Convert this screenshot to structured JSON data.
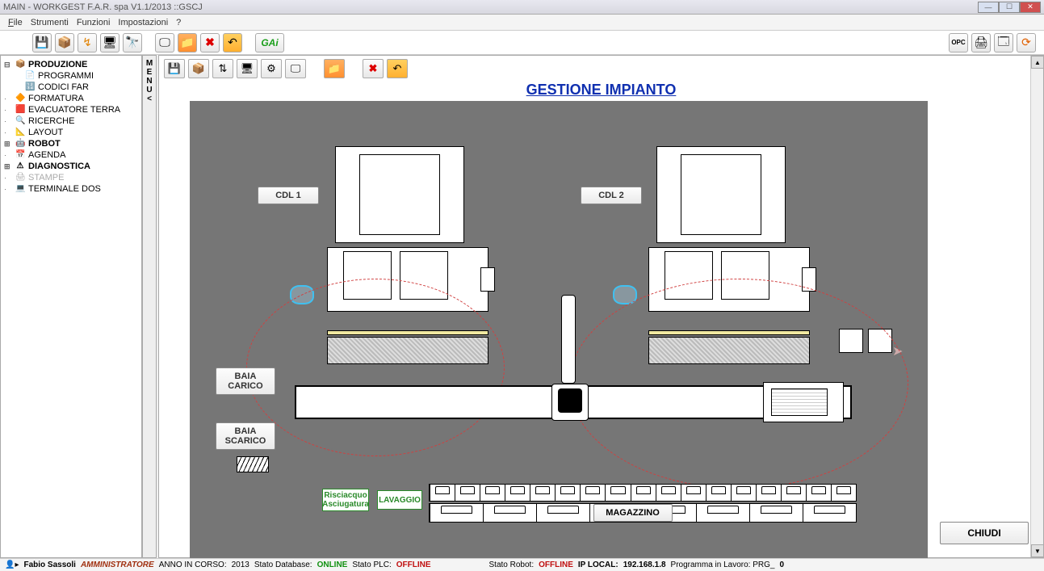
{
  "window": {
    "title": "MAIN - WORKGEST  F.A.R. spa  V1.1/2013        ::GSCJ"
  },
  "menubar": {
    "file": "File",
    "strumenti": "Strumenti",
    "funzioni": "Funzioni",
    "impostazioni": "Impostazioni",
    "help": "?"
  },
  "menu_tab": "MENU <",
  "sidebar": {
    "items": [
      {
        "label": "PRODUZIONE",
        "bold": true,
        "icon": "📦",
        "exp": "⊟"
      },
      {
        "label": "PROGRAMMI",
        "child": true,
        "icon": "📄"
      },
      {
        "label": "CODICI FAR",
        "child": true,
        "icon": "🔢"
      },
      {
        "label": "FORMATURA",
        "icon": "🔶"
      },
      {
        "label": "EVACUATORE TERRA",
        "icon": "🟥"
      },
      {
        "label": "RICERCHE",
        "icon": "🔍"
      },
      {
        "label": "LAYOUT",
        "icon": "📐"
      },
      {
        "label": "ROBOT",
        "bold": true,
        "icon": "🤖",
        "exp": "⊞"
      },
      {
        "label": "AGENDA",
        "icon": "📅"
      },
      {
        "label": "DIAGNOSTICA",
        "bold": true,
        "icon": "⚠",
        "exp": "⊞"
      },
      {
        "label": "STAMPE",
        "grey": true,
        "icon": "🖨"
      },
      {
        "label": "TERMINALE DOS",
        "icon": "💻"
      }
    ]
  },
  "page": {
    "title": "GESTIONE IMPIANTO"
  },
  "plant": {
    "cdl1": "CDL 1",
    "cdl2": "CDL 2",
    "baia_carico": "BAIA CARICO",
    "baia_scarico": "BAIA SCARICO",
    "risciacquo": "Risciacquo Asciugatura",
    "lavaggio": "LAVAGGIO",
    "magazzino": "MAGAZZINO",
    "chiudi": "CHIUDI"
  },
  "toolbar_logo": "GAi",
  "statusbar": {
    "user_icon": "👤",
    "user": "Fabio Sassoli",
    "role": "AMMINISTRATORE",
    "anno_label": "ANNO IN CORSO:",
    "anno": "2013",
    "db_label": "Stato Database:",
    "db_state": "ONLINE",
    "plc_label": "Stato PLC:",
    "plc_state": "OFFLINE",
    "robot_label": "Stato Robot:",
    "robot_state": "OFFLINE",
    "ip_label": "IP LOCAL:",
    "ip": "192.168.1.8",
    "prg_label": "Programma in Lavoro: PRG_",
    "prg": "0"
  },
  "colors": {
    "title_blue": "#1030b0",
    "canvas_bg": "#767676",
    "green_label": "#2a8a2a",
    "dashed_red": "#d04040"
  }
}
